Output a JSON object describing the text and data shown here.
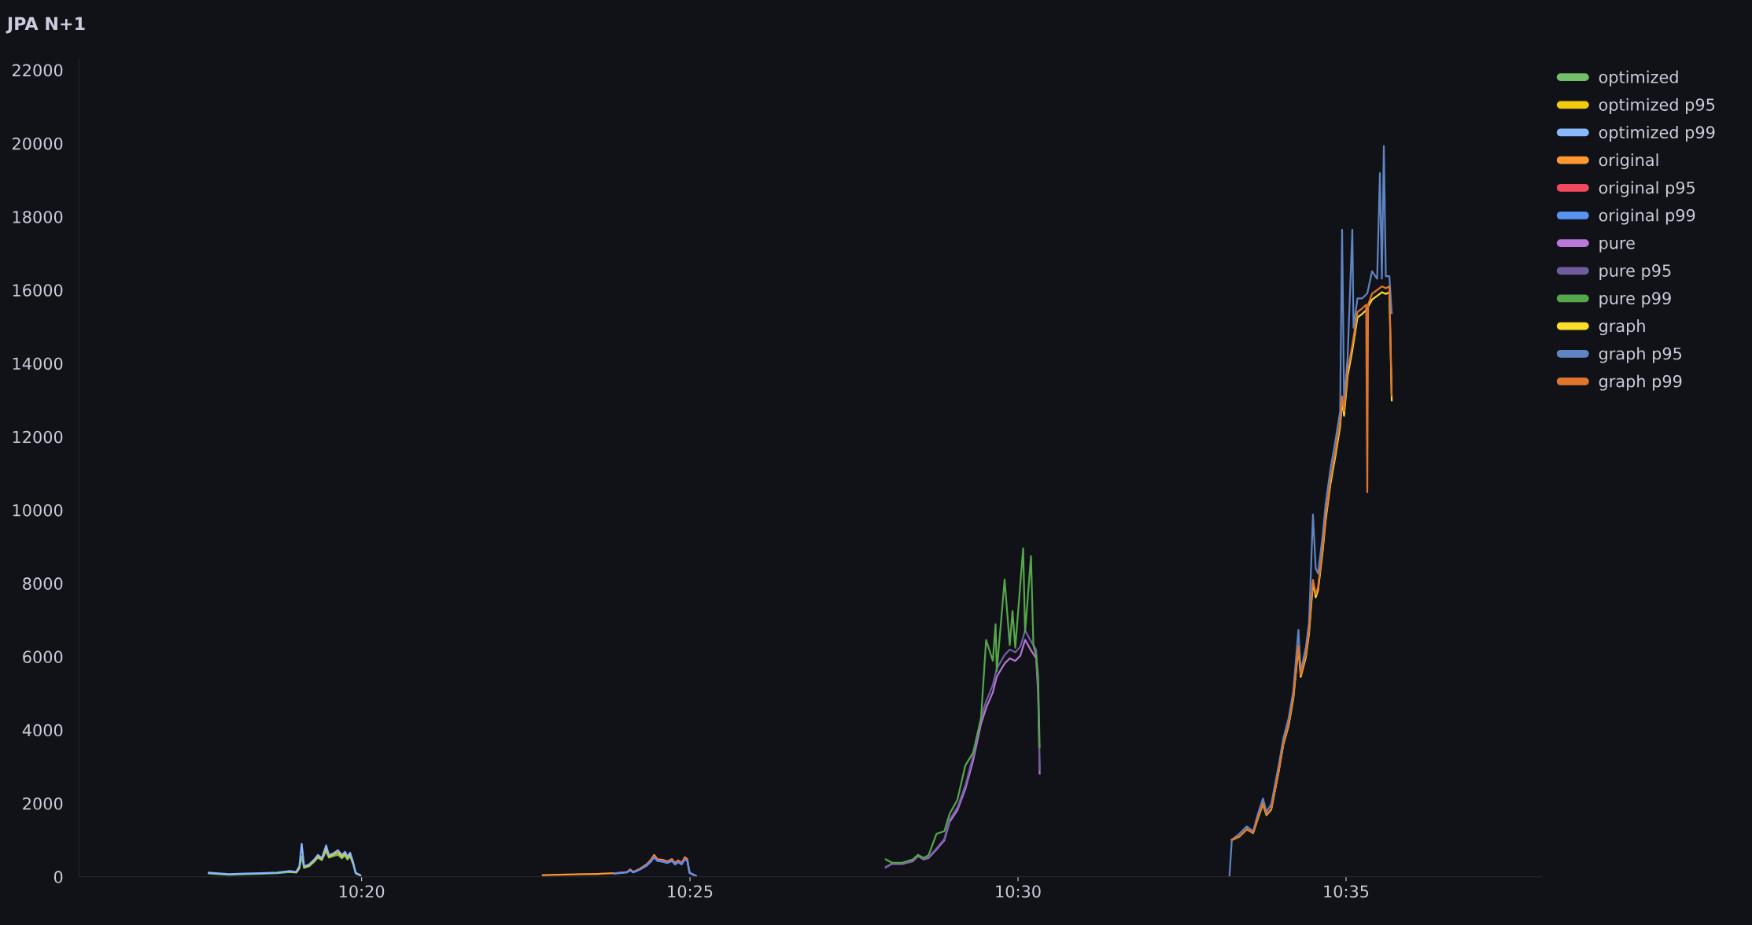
{
  "chart_data": {
    "type": "line",
    "title": "JPA N+1",
    "xlim": [
      10.2615,
      10.633
    ],
    "xticks": [
      {
        "value": 10.3333,
        "label": "10:20"
      },
      {
        "value": 10.4167,
        "label": "10:25"
      },
      {
        "value": 10.5,
        "label": "10:30"
      },
      {
        "value": 10.5833,
        "label": "10:35"
      }
    ],
    "ylim": [
      0,
      22300
    ],
    "yticks": [
      0,
      2000,
      4000,
      6000,
      8000,
      10000,
      12000,
      14000,
      16000,
      18000,
      20000,
      22000
    ],
    "grid": false,
    "legend": "right",
    "line_style": "solid",
    "series": [
      {
        "name": "optimized",
        "color": "#73bf69",
        "x": [
          10.2945,
          10.2996,
          10.3036,
          10.3077,
          10.3118,
          10.3151,
          10.3167,
          10.3175,
          10.3181,
          10.3187,
          10.3199,
          10.3212,
          10.3222,
          10.3232,
          10.3243,
          10.325,
          10.3261,
          10.3273,
          10.3283,
          10.3291,
          10.3297,
          10.3304,
          10.3312,
          10.3318,
          10.333
        ],
        "values": [
          90,
          55,
          70,
          80,
          95,
          130,
          110,
          220,
          560,
          240,
          280,
          400,
          520,
          450,
          700,
          520,
          560,
          600,
          500,
          580,
          470,
          560,
          330,
          90,
          35
        ]
      },
      {
        "name": "optimized p95",
        "color": "#f2cc0c",
        "x": [
          10.3151,
          10.3167,
          10.3175,
          10.3181,
          10.3187,
          10.3199,
          10.3212,
          10.3222,
          10.3232,
          10.3243,
          10.325,
          10.3261,
          10.3273,
          10.3283,
          10.3291,
          10.3297,
          10.3304,
          10.3312
        ],
        "values": [
          143,
          120,
          250,
          null,
          265,
          305,
          430,
          555,
          478,
          780,
          555,
          600,
          660,
          545,
          630,
          510,
          605,
          350
        ]
      },
      {
        "name": "optimized p99",
        "color": "#8ab8ff",
        "x": [
          10.2945,
          10.2996,
          10.3036,
          10.3077,
          10.3118,
          10.3151,
          10.3167,
          10.3175,
          10.3181,
          10.3187,
          10.3199,
          10.3212,
          10.3222,
          10.3232,
          10.3243,
          10.325,
          10.3261,
          10.3273,
          10.3283,
          10.3291,
          10.3297,
          10.3304,
          10.3312,
          10.3318,
          10.333
        ],
        "values": [
          111,
          69,
          86,
          94,
          111,
          156,
          129,
          287,
          898,
          287,
          330,
          461,
          593,
          505,
          855,
          593,
          637,
          724,
          593,
          680,
          549,
          654,
          375,
          111,
          41
        ]
      },
      {
        "name": "original",
        "color": "#ff9830",
        "x": [
          10.3793,
          10.3852,
          10.3893,
          10.3934,
          10.3974,
          10.4007,
          10.4015,
          10.4023,
          10.404,
          10.4056,
          10.4068,
          10.4076,
          10.4084,
          10.4097,
          10.4109,
          10.4121,
          10.4129,
          10.4137,
          10.4146,
          10.4154,
          10.416,
          10.4166,
          10.4182
        ],
        "values": [
          41,
          60,
          69,
          77,
          94,
          129,
          199,
          129,
          217,
          330,
          461,
          593,
          480,
          461,
          418,
          480,
          375,
          444,
          375,
          532,
          480,
          111,
          24
        ]
      },
      {
        "name": "original p95",
        "color": "#f2495c",
        "x": [
          10.3974,
          10.4007,
          10.4015,
          10.4023,
          10.404,
          10.4056,
          10.4068,
          10.4076,
          10.4084,
          10.4097,
          10.4109,
          10.4121,
          10.4129,
          10.4137,
          10.4146,
          10.4154,
          10.416,
          10.4166,
          10.4182
        ],
        "values": [
          88,
          121,
          187,
          121,
          204,
          310,
          433,
          557,
          451,
          433,
          393,
          451,
          352,
          417,
          352,
          500,
          451,
          104,
          22
        ]
      },
      {
        "name": "original p99",
        "color": "#5794f2",
        "x": [
          10.3974,
          10.4007,
          10.4015,
          10.4023,
          10.404,
          10.4056,
          10.4068,
          10.4076,
          10.4084,
          10.4097,
          10.4109,
          10.4121,
          10.4129,
          10.4137,
          10.4146,
          10.4154,
          10.416,
          10.4166,
          10.4182
        ],
        "values": [
          84,
          115,
          178,
          115,
          194,
          295,
          412,
          530,
          429,
          412,
          374,
          429,
          335,
          397,
          335,
          475,
          429,
          99,
          21
        ]
      },
      {
        "name": "pure",
        "color": "#b877d9",
        "x": [
          10.4664,
          10.468,
          10.4706,
          10.4733,
          10.4746,
          10.476,
          10.4773,
          10.4793,
          10.4813,
          10.4826,
          10.4846,
          10.4866,
          10.4886,
          10.4906,
          10.4919,
          10.4936,
          10.4946,
          10.4966,
          10.4979,
          10.4993,
          10.5006,
          10.5018,
          10.5033,
          10.5046,
          10.5051,
          10.5055
        ],
        "values": [
          255,
          349,
          349,
          420,
          564,
          472,
          514,
          742,
          992,
          1492,
          1813,
          2386,
          3170,
          4171,
          4600,
          5029,
          5457,
          5816,
          5957,
          5886,
          6030,
          6459,
          6172,
          5957,
          5029,
          2815
        ]
      },
      {
        "name": "pure p95",
        "color": "#705da0",
        "x": [
          10.4664,
          10.468,
          10.4706,
          10.4733,
          10.4746,
          10.476,
          10.4773,
          10.4793,
          10.4813,
          10.4826,
          10.4846,
          10.4866,
          10.4886,
          10.4906,
          10.4919,
          10.4936,
          10.4946,
          10.4966,
          10.4979,
          10.4993,
          10.5006,
          10.5018,
          10.5033,
          10.5046,
          10.5051,
          10.5055
        ],
        "values": [
          265,
          363,
          363,
          437,
          587,
          491,
          535,
          772,
          1032,
          1552,
          1886,
          2481,
          3297,
          4338,
          4784,
          5230,
          5675,
          6049,
          6195,
          6121,
          6271,
          6717,
          6419,
          6195,
          5230,
          2928
        ]
      },
      {
        "name": "pure p99",
        "color": "#56a64b",
        "x": [
          10.4664,
          10.468,
          10.4706,
          10.4733,
          10.4746,
          10.476,
          10.4773,
          10.4793,
          10.4813,
          10.4826,
          10.4846,
          10.4866,
          10.4886,
          10.4906,
          10.4919,
          10.4936,
          10.4943,
          10.4946,
          10.4966,
          10.4979,
          10.4986,
          10.4993,
          10.5013,
          10.5018,
          10.5033,
          10.5039,
          10.5046,
          10.5051,
          10.5055
        ],
        "values": [
          472,
          383,
          383,
          472,
          598,
          514,
          590,
          1170,
          1241,
          1706,
          2099,
          3029,
          3385,
          4315,
          6459,
          5886,
          6887,
          5601,
          8101,
          6315,
          7243,
          6244,
          8958,
          6673,
          8744,
          6315,
          6030,
          5457,
          3528
        ]
      },
      {
        "name": "graph",
        "color": "#fade2a",
        "x": [
          10.5543,
          10.5562,
          10.5581,
          10.5597,
          10.5609,
          10.5622,
          10.5631,
          10.5643,
          10.5662,
          10.5674,
          10.5687,
          10.5699,
          10.5712,
          10.5718,
          10.5731,
          10.5739,
          10.5749,
          10.5756,
          10.5762,
          10.5774,
          10.5781,
          10.5793,
          10.5806,
          10.5818,
          10.5823,
          10.5828,
          10.5837,
          10.5849,
          10.5862,
          10.5874,
          10.5884,
          10.5899,
          10.5912,
          10.5924,
          10.5934,
          10.5943,
          10.5949
        ],
        "values": [
          1000,
          1090,
          1290,
          1190,
          1580,
          1980,
          1680,
          1830,
          2870,
          3620,
          4110,
          4850,
          6240,
          5450,
          5990,
          6630,
          8020,
          7620,
          7820,
          8910,
          9700,
          10690,
          11480,
          12280,
          12970,
          12570,
          13660,
          14360,
          15250,
          15350,
          15450,
          15740,
          15840,
          15940,
          15890,
          15940,
          12990
        ]
      },
      {
        "name": "graph p95",
        "color": "#5f84c4",
        "x": [
          10.5537,
          10.5543,
          10.5562,
          10.5581,
          10.5597,
          10.5609,
          10.5622,
          10.5631,
          10.5643,
          10.5662,
          10.5674,
          10.5687,
          10.5699,
          10.5712,
          10.5718,
          10.5731,
          10.5739,
          10.5749,
          10.5756,
          10.5762,
          10.5774,
          10.5781,
          10.5793,
          10.5806,
          10.5818,
          10.5823,
          10.5828,
          10.5837,
          10.5849,
          10.5852,
          10.5862,
          10.5874,
          10.5887,
          10.5899,
          10.5912,
          10.5919,
          10.5924,
          10.5929,
          10.5934,
          10.5943,
          10.5949
        ],
        "values": [
          32,
          1010,
          1170,
          1372,
          1237,
          1706,
          2135,
          1773,
          1974,
          3046,
          3783,
          4319,
          5055,
          6731,
          5591,
          6262,
          6930,
          9878,
          8405,
          8270,
          9342,
          10146,
          11085,
          11889,
          12693,
          17648,
          12960,
          14165,
          17648,
          14969,
          15773,
          15773,
          15908,
          16510,
          16309,
          19190,
          16309,
          19927,
          16377,
          16377,
          15372
        ]
      },
      {
        "name": "graph p99",
        "color": "#e0752d",
        "x": [
          10.5543,
          10.5562,
          10.5581,
          10.5597,
          10.5609,
          10.5622,
          10.5631,
          10.5643,
          10.5662,
          10.5674,
          10.5687,
          10.5699,
          10.5712,
          10.5718,
          10.5731,
          10.5739,
          10.5749,
          10.5756,
          10.5762,
          10.5774,
          10.5781,
          10.5793,
          10.5806,
          10.5818,
          10.5823,
          10.5828,
          10.5837,
          10.5849,
          10.5862,
          10.5874,
          10.5884,
          10.5887,
          10.5889,
          10.5899,
          10.5912,
          10.5924,
          10.5934,
          10.5943,
          10.5949
        ],
        "values": [
          1010,
          1100,
          1300,
          1200,
          1600,
          2000,
          1700,
          1850,
          2900,
          3650,
          4150,
          4900,
          6300,
          5500,
          6050,
          6700,
          8100,
          7700,
          7900,
          9000,
          9800,
          10800,
          11600,
          12400,
          13100,
          12700,
          13800,
          14500,
          15400,
          15500,
          15600,
          10482,
          15600,
          15900,
          16000,
          16100,
          16050,
          16100,
          13121
        ]
      }
    ]
  }
}
